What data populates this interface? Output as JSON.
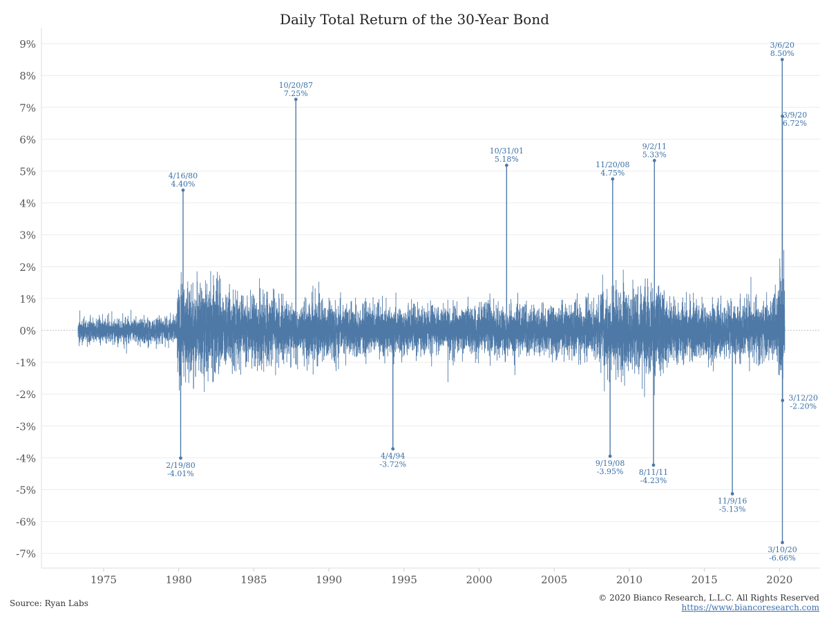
{
  "chart_data": {
    "type": "bar",
    "title": "Daily Total Return of the 30-Year Bond",
    "xlabel": "",
    "ylabel": "",
    "xlim": [
      1973.3,
      2020.35
    ],
    "ylim": [
      -7.6,
      9.3
    ],
    "y_ticks": [
      9,
      8,
      7,
      6,
      5,
      4,
      3,
      2,
      1,
      0,
      -1,
      -2,
      -3,
      -4,
      -5,
      -6,
      -7
    ],
    "y_tick_labels": [
      "9%",
      "8%",
      "7%",
      "6%",
      "5%",
      "4%",
      "3%",
      "2%",
      "1%",
      "0%",
      "-1%",
      "-2%",
      "-3%",
      "-4%",
      "-5%",
      "-6%",
      "-7%"
    ],
    "x_ticks": [
      1975,
      1980,
      1985,
      1990,
      1995,
      2000,
      2005,
      2010,
      2015,
      2020
    ],
    "x_tick_labels": [
      "1975",
      "1980",
      "1985",
      "1990",
      "1995",
      "2000",
      "2005",
      "2010",
      "2015",
      "2020"
    ],
    "grid": "horizontal",
    "series_color": "#4e79a7",
    "volatility_profile": [
      {
        "from": 1973.3,
        "to": 1979.9,
        "typical_abs_return": 0.35
      },
      {
        "from": 1979.9,
        "to": 1982.8,
        "typical_abs_return": 1.3
      },
      {
        "from": 1982.8,
        "to": 1987.0,
        "typical_abs_return": 0.9
      },
      {
        "from": 1987.0,
        "to": 1990.5,
        "typical_abs_return": 0.8
      },
      {
        "from": 1990.5,
        "to": 1999.0,
        "typical_abs_return": 0.65
      },
      {
        "from": 1999.0,
        "to": 2008.0,
        "typical_abs_return": 0.7
      },
      {
        "from": 2008.0,
        "to": 2012.5,
        "typical_abs_return": 1.15
      },
      {
        "from": 2012.5,
        "to": 2019.9,
        "typical_abs_return": 0.8
      },
      {
        "from": 2019.9,
        "to": 2020.35,
        "typical_abs_return": 1.6
      }
    ],
    "highlighted_points": [
      {
        "date": "4/16/80",
        "x": 1980.29,
        "value": 4.4,
        "label": "4.40%"
      },
      {
        "date": "2/19/80",
        "x": 1980.13,
        "value": -4.01,
        "label": "-4.01%"
      },
      {
        "date": "10/20/87",
        "x": 1987.8,
        "value": 7.25,
        "label": "7.25%"
      },
      {
        "date": "4/4/94",
        "x": 1994.26,
        "value": -3.72,
        "label": "-3.72%"
      },
      {
        "date": "10/31/01",
        "x": 2001.83,
        "value": 5.18,
        "label": "5.18%"
      },
      {
        "date": "11/20/08",
        "x": 2008.89,
        "value": 4.75,
        "label": "4.75%"
      },
      {
        "date": "9/19/08",
        "x": 2008.72,
        "value": -3.95,
        "label": "-3.95%"
      },
      {
        "date": "9/2/11",
        "x": 2011.67,
        "value": 5.33,
        "label": "5.33%"
      },
      {
        "date": "8/11/11",
        "x": 2011.61,
        "value": -4.23,
        "label": "-4.23%"
      },
      {
        "date": "11/9/16",
        "x": 2016.86,
        "value": -5.13,
        "label": "-5.13%"
      },
      {
        "date": "3/6/20",
        "x": 2020.18,
        "value": 8.5,
        "label": "8.50%"
      },
      {
        "date": "3/9/20",
        "x": 2020.19,
        "value": 6.72,
        "label": "6.72%"
      },
      {
        "date": "3/10/20",
        "x": 2020.19,
        "value": -6.66,
        "label": "-6.66%"
      },
      {
        "date": "3/12/20",
        "x": 2020.2,
        "value": -2.2,
        "label": "-2.20%"
      }
    ]
  },
  "footer": {
    "source": "Source: Ryan Labs",
    "copyright": "© 2020 Bianco Research, L.L.C. All Rights Reserved",
    "url": "https://www.biancoresearch.com"
  }
}
